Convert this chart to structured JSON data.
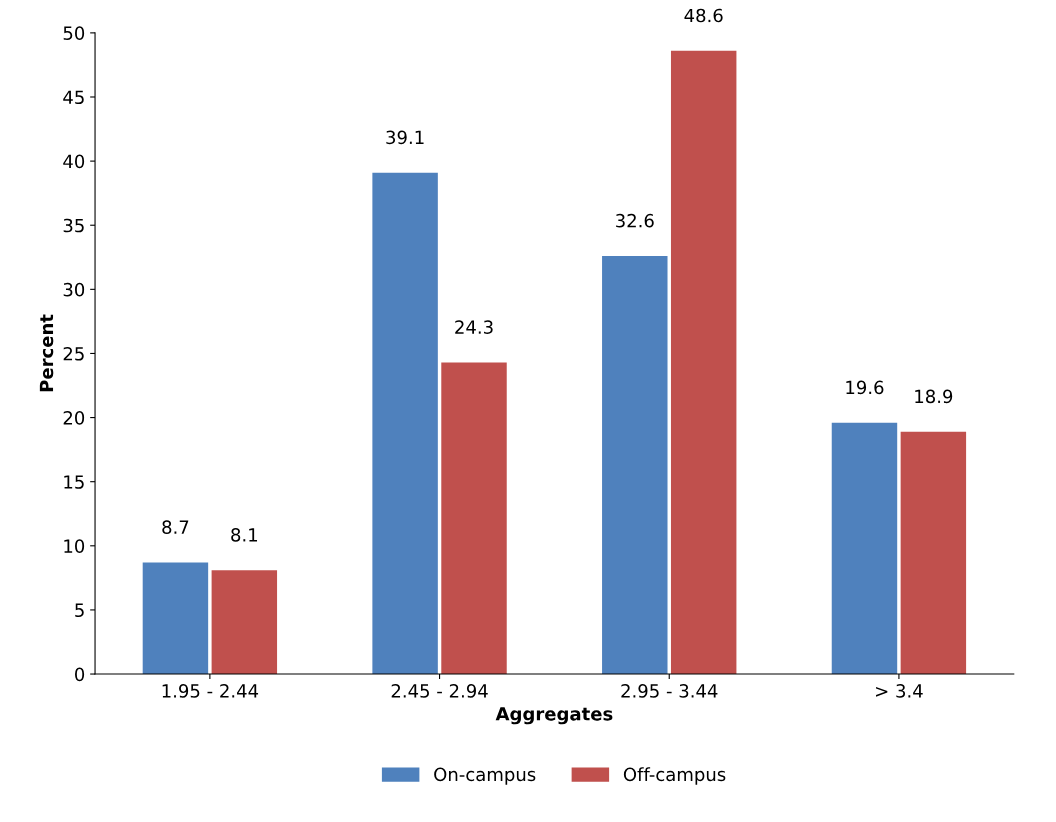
{
  "chart_data": {
    "type": "bar",
    "xlabel": "Aggregates",
    "ylabel": "Percent",
    "categories": [
      "1.95 - 2.44",
      "2.45 - 2.94",
      "2.95 - 3.44",
      "> 3.4"
    ],
    "series": [
      {
        "name": "On-campus",
        "color": "#4f81bd",
        "values": [
          8.7,
          39.1,
          32.6,
          19.6
        ]
      },
      {
        "name": "Off-campus",
        "color": "#c0504d",
        "values": [
          8.1,
          24.3,
          48.6,
          18.9
        ]
      }
    ],
    "ylim": [
      0,
      50
    ],
    "yticks": [
      0,
      5,
      10,
      15,
      20,
      25,
      30,
      35,
      40,
      45,
      50
    ],
    "data_labels": true,
    "legend": "bottom",
    "grid": false
  }
}
